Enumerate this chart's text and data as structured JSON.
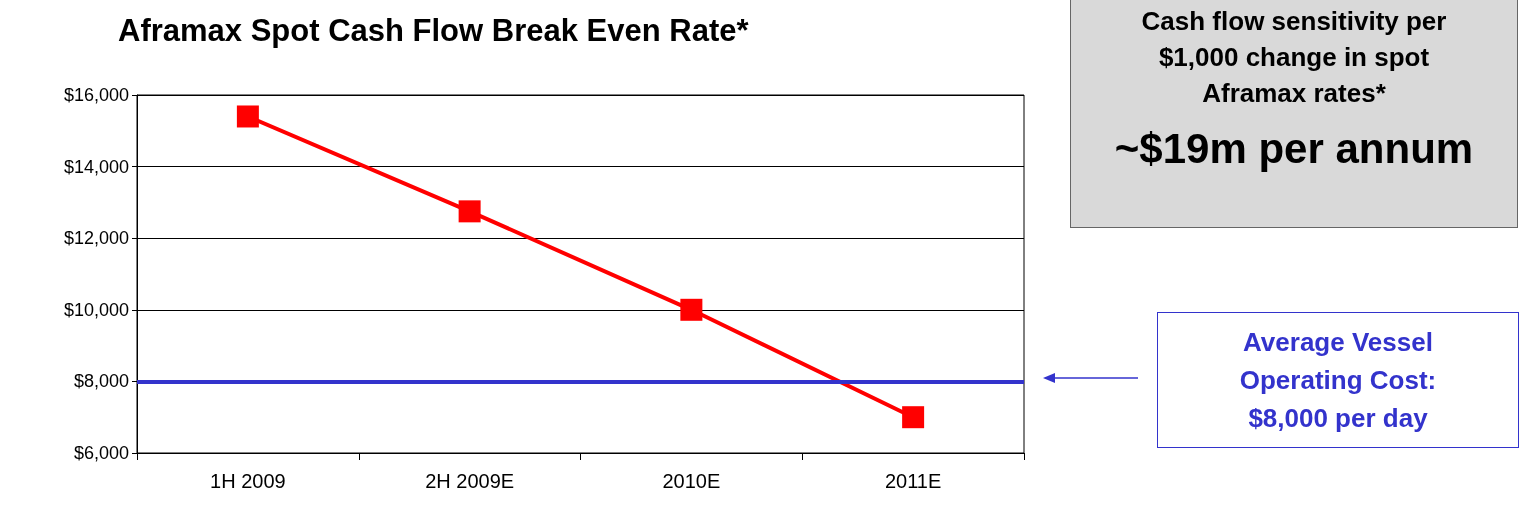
{
  "chart_data": {
    "type": "line",
    "title": "Aframax Spot Cash Flow Break Even Rate*",
    "categories": [
      "1H 2009",
      "2H 2009E",
      "2010E",
      "2011E"
    ],
    "series": [
      {
        "color": "#ff0000",
        "values": [
          15400,
          12750,
          10000,
          7000
        ]
      }
    ],
    "ylim": [
      6000,
      16000
    ],
    "yticks": [
      {
        "value": 6000,
        "label": "$6,000"
      },
      {
        "value": 8000,
        "label": "$8,000"
      },
      {
        "value": 10000,
        "label": "$10,000"
      },
      {
        "value": 12000,
        "label": "$12,000"
      },
      {
        "value": 14000,
        "label": "$14,000"
      },
      {
        "value": 16000,
        "label": "$16,000"
      }
    ],
    "grid": "y",
    "marker": "square",
    "line_style": "solid",
    "ref_lines": [
      {
        "axis": "y",
        "value": 8000,
        "label": "Average Vessel Operating Cost: $8,000 per day",
        "color": "#3333cc"
      }
    ],
    "annotations": [
      "Cash flow sensitivity per $1,000 change in spot Aframax rates*",
      "~$19m per annum"
    ]
  }
}
